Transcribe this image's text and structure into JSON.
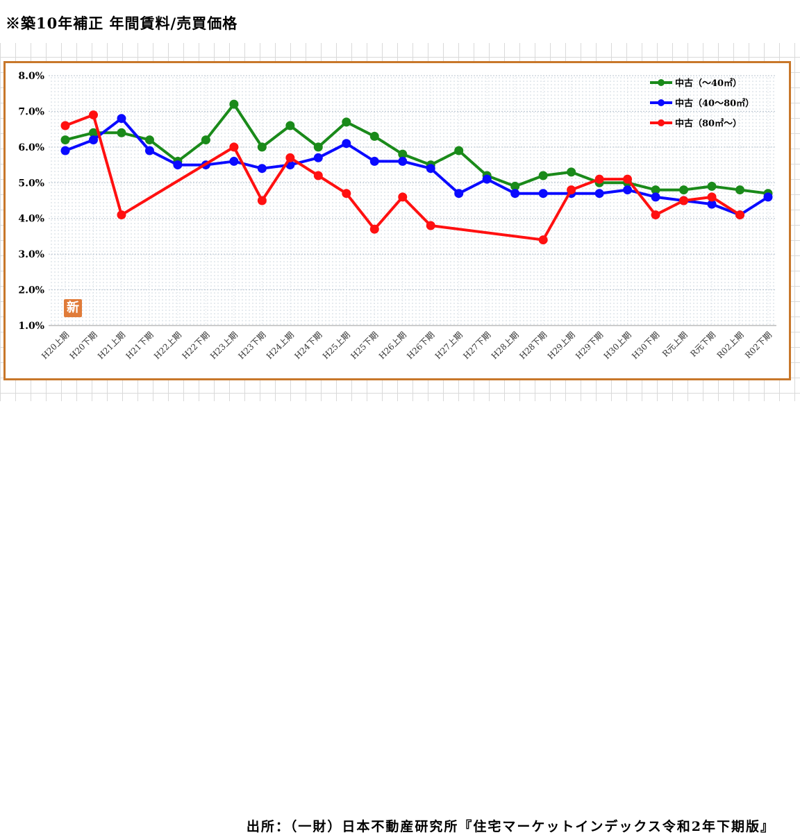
{
  "title": "※築10年補正 年間賃料/売買価格",
  "source": "出所：（一財）日本不動産研究所『住宅マーケットインデックス令和2年下期版』",
  "badge": "新",
  "chart_data": {
    "type": "line",
    "title": "",
    "xlabel": "",
    "ylabel": "",
    "ylim": [
      1.0,
      8.0
    ],
    "yticks": [
      "1.0%",
      "2.0%",
      "3.0%",
      "4.0%",
      "5.0%",
      "6.0%",
      "7.0%",
      "8.0%"
    ],
    "grid": true,
    "legend_position": "top-right",
    "categories": [
      "H20上期",
      "H20下期",
      "H21上期",
      "H21下期",
      "H22上期",
      "H22下期",
      "H23上期",
      "H23下期",
      "H24上期",
      "H24下期",
      "H25上期",
      "H25下期",
      "H26上期",
      "H26下期",
      "H27上期",
      "H27下期",
      "H28上期",
      "H28下期",
      "H29上期",
      "H29下期",
      "H30上期",
      "H30下期",
      "R元上期",
      "R元下期",
      "R02上期",
      "R02下期"
    ],
    "series": [
      {
        "name": "中古（～40㎡）",
        "color": "#1a8a1a",
        "values": [
          6.2,
          6.4,
          6.4,
          6.2,
          5.6,
          6.2,
          7.2,
          6.0,
          6.6,
          6.0,
          6.7,
          6.3,
          5.8,
          5.5,
          5.9,
          5.2,
          4.9,
          5.2,
          5.3,
          5.0,
          5.0,
          4.8,
          4.8,
          4.9,
          4.8,
          4.7
        ]
      },
      {
        "name": "中古（40～80㎡）",
        "color": "#0a0aff",
        "values": [
          5.9,
          6.2,
          6.8,
          5.9,
          5.5,
          5.5,
          5.6,
          5.4,
          5.5,
          5.7,
          6.1,
          5.6,
          5.6,
          5.4,
          4.7,
          5.1,
          4.7,
          4.7,
          4.7,
          4.7,
          4.8,
          4.6,
          4.5,
          4.4,
          4.1,
          4.6
        ]
      },
      {
        "name": "中古（80㎡～）",
        "color": "#ff1010",
        "values": [
          6.6,
          6.9,
          4.1,
          null,
          null,
          null,
          6.0,
          4.5,
          5.7,
          5.2,
          4.7,
          3.7,
          4.6,
          3.8,
          null,
          null,
          null,
          3.4,
          4.8,
          5.1,
          5.1,
          4.1,
          4.5,
          4.6,
          4.1,
          null
        ]
      }
    ]
  }
}
